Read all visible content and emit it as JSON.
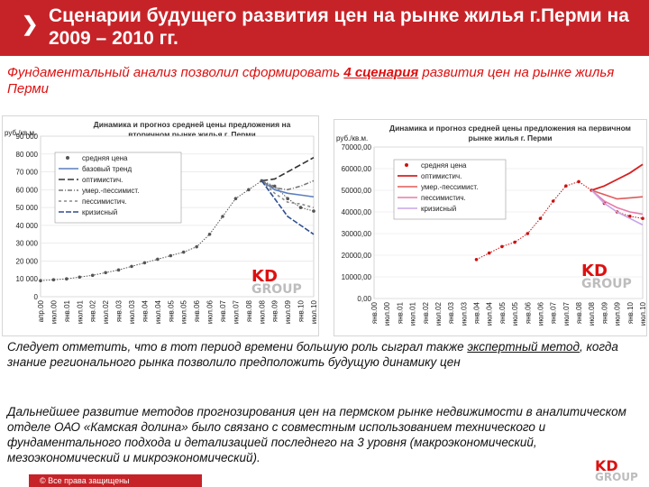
{
  "header": {
    "title": "Сценарии будущего развития цен на рынке жилья г.Перми на 2009 – 2010 гг."
  },
  "intro": {
    "text_before": "Фундаментальный анализ позволил сформировать ",
    "underlined": "4 сценария",
    "text_after": " развития цен на рынке жилья Перми"
  },
  "note1": {
    "text_before": "Следует отметить, что в тот период времени большую роль сыграл также ",
    "underlined": "экспертный метод",
    "text_after": ", когда знание регионального рынка позволило предположить будущую динамику цен"
  },
  "note2": {
    "text": "Дальнейшее развитие методов прогнозирования цен на пермском рынке недвижимости в аналитическом отделе ОАО «Камская долина» было связано с совместным использованием технического и фундаментального подхода и детализацией последнего на 3 уровня (макроэкономический, мезоэкономический и микроэкономический)."
  },
  "footer": {
    "text": "© Все права защищены"
  },
  "logo": {
    "kd": "KD",
    "group": "GROUP"
  },
  "colors": {
    "header": "#c62328",
    "accent": "#d11111"
  },
  "chart_data": [
    {
      "type": "line",
      "title": "Динамика и прогноз средней цены предложения на вторичном рынке жилья г. Перми",
      "ylabel": "руб./кв.м.",
      "ylim": [
        0,
        90000
      ],
      "yticks": [
        "90 000",
        "80 000",
        "70 000",
        "60 000",
        "50 000",
        "40 000",
        "30 000",
        "20 000",
        "10 000",
        "0"
      ],
      "xticks": [
        "апр.00",
        "июл.00",
        "янв.01",
        "июл.01",
        "янв.02",
        "июл.02",
        "янв.03",
        "июл.03",
        "янв.04",
        "июл.04",
        "янв.05",
        "июл.05",
        "янв.06",
        "июл.06",
        "янв.07",
        "июл.07",
        "янв.08",
        "июл.08",
        "янв.09",
        "июл.09",
        "янв.10",
        "июл.10"
      ],
      "legend": [
        "средняя цена",
        "базовый тренд",
        "оптимистич.",
        "умер.-пессимист.",
        "пессимистич.",
        "кризисный"
      ],
      "legend_position": "top-left",
      "series": [
        {
          "name": "средняя цена",
          "values": [
            9000,
            9500,
            10000,
            11000,
            12000,
            13500,
            15000,
            17000,
            19000,
            21000,
            23000,
            25000,
            28000,
            35000,
            45000,
            55000,
            60000,
            65000,
            62000,
            55000,
            50000,
            48000
          ]
        },
        {
          "name": "базовый тренд",
          "values": [
            null,
            null,
            null,
            null,
            null,
            null,
            null,
            null,
            null,
            null,
            null,
            null,
            null,
            null,
            null,
            null,
            null,
            65000,
            60000,
            58000,
            57000,
            56000
          ]
        },
        {
          "name": "оптимистич.",
          "values": [
            null,
            null,
            null,
            null,
            null,
            null,
            null,
            null,
            null,
            null,
            null,
            null,
            null,
            null,
            null,
            null,
            null,
            65000,
            66000,
            70000,
            74000,
            78000
          ]
        },
        {
          "name": "умер.-пессимист.",
          "values": [
            null,
            null,
            null,
            null,
            null,
            null,
            null,
            null,
            null,
            null,
            null,
            null,
            null,
            null,
            null,
            null,
            null,
            65000,
            61000,
            60000,
            62000,
            65000
          ]
        },
        {
          "name": "пессимистич.",
          "values": [
            null,
            null,
            null,
            null,
            null,
            null,
            null,
            null,
            null,
            null,
            null,
            null,
            null,
            null,
            null,
            null,
            null,
            65000,
            58000,
            53000,
            52000,
            50000
          ]
        },
        {
          "name": "кризисный",
          "values": [
            null,
            null,
            null,
            null,
            null,
            null,
            null,
            null,
            null,
            null,
            null,
            null,
            null,
            null,
            null,
            null,
            null,
            65000,
            55000,
            45000,
            40000,
            35000
          ]
        }
      ]
    },
    {
      "type": "line",
      "title": "Динамика и прогноз средней цены предложения на первичном рынке жилья г. Перми",
      "ylabel": "руб./кв.м.",
      "ylim": [
        0,
        70000
      ],
      "yticks": [
        "70000,00",
        "60000,00",
        "50000,00",
        "40000,00",
        "30000,00",
        "20000,00",
        "10000,00",
        "0,00"
      ],
      "xticks": [
        "янв.00",
        "июл.00",
        "янв.01",
        "июл.01",
        "янв.02",
        "июл.02",
        "янв.03",
        "июл.03",
        "янв.04",
        "июл.04",
        "янв.05",
        "июл.05",
        "янв.06",
        "июл.06",
        "янв.07",
        "июл.07",
        "янв.08",
        "июл.08",
        "янв.09",
        "июл.09",
        "янв.10",
        "июл.10"
      ],
      "legend": [
        "средняя цена",
        "оптимистич.",
        "умер.-пессимист.",
        "пессимистич.",
        "кризисный"
      ],
      "legend_position": "top-left",
      "series": [
        {
          "name": "средняя цена",
          "values": [
            null,
            null,
            null,
            null,
            null,
            null,
            null,
            null,
            18000,
            21000,
            24000,
            26000,
            30000,
            37000,
            45000,
            52000,
            54000,
            50000,
            44000,
            40000,
            38000,
            37000
          ]
        },
        {
          "name": "оптимистич.",
          "values": [
            null,
            null,
            null,
            null,
            null,
            null,
            null,
            null,
            null,
            null,
            null,
            null,
            null,
            null,
            null,
            null,
            null,
            50000,
            52000,
            55000,
            58000,
            62000
          ]
        },
        {
          "name": "умер.-пессимист.",
          "values": [
            null,
            null,
            null,
            null,
            null,
            null,
            null,
            null,
            null,
            null,
            null,
            null,
            null,
            null,
            null,
            null,
            null,
            50000,
            48000,
            46000,
            46500,
            47000
          ]
        },
        {
          "name": "пессимистич.",
          "values": [
            null,
            null,
            null,
            null,
            null,
            null,
            null,
            null,
            null,
            null,
            null,
            null,
            null,
            null,
            null,
            null,
            null,
            50000,
            45000,
            42000,
            40000,
            39000
          ]
        },
        {
          "name": "кризисный",
          "values": [
            null,
            null,
            null,
            null,
            null,
            null,
            null,
            null,
            null,
            null,
            null,
            null,
            null,
            null,
            null,
            null,
            null,
            50000,
            44000,
            40000,
            37000,
            34000
          ]
        }
      ]
    }
  ]
}
